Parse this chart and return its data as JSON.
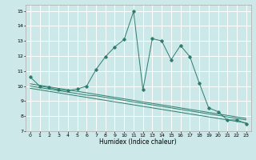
{
  "title": "",
  "xlabel": "Humidex (Indice chaleur)",
  "xlim": [
    -0.5,
    23.5
  ],
  "ylim": [
    7,
    15.4
  ],
  "yticks": [
    7,
    8,
    9,
    10,
    11,
    12,
    13,
    14,
    15
  ],
  "xticks": [
    0,
    1,
    2,
    3,
    4,
    5,
    6,
    7,
    8,
    9,
    10,
    11,
    12,
    13,
    14,
    15,
    16,
    17,
    18,
    19,
    20,
    21,
    22,
    23
  ],
  "bg_color": "#cce8e8",
  "grid_color": "#ffffff",
  "line_color": "#2e7d6e",
  "line1_x": [
    0,
    1,
    2,
    3,
    4,
    5,
    6,
    7,
    8,
    9,
    10,
    11,
    12,
    13,
    14,
    15,
    16,
    17,
    18,
    19,
    20,
    21,
    22,
    23
  ],
  "line1_y": [
    10.6,
    10.0,
    9.9,
    9.75,
    9.7,
    9.8,
    10.0,
    11.1,
    11.95,
    12.6,
    13.1,
    14.95,
    9.75,
    13.15,
    13.0,
    11.75,
    12.7,
    11.95,
    10.2,
    8.55,
    8.3,
    7.75,
    7.75,
    7.5
  ],
  "line2_x": [
    0,
    1,
    2,
    3,
    4,
    5,
    6,
    7,
    8,
    9,
    10,
    11,
    12,
    13,
    14,
    15,
    16,
    17,
    18,
    19,
    20,
    21,
    22,
    23
  ],
  "line2_y": [
    10.0,
    9.9,
    9.8,
    9.7,
    9.6,
    9.5,
    9.4,
    9.35,
    9.25,
    9.15,
    9.05,
    8.95,
    8.85,
    8.75,
    8.65,
    8.55,
    8.45,
    8.35,
    8.25,
    8.15,
    8.05,
    7.95,
    7.85,
    7.75
  ],
  "line3_x": [
    0,
    1,
    2,
    3,
    4,
    5,
    6,
    7,
    8,
    9,
    10,
    11,
    12,
    13,
    14,
    15,
    16,
    17,
    18,
    19,
    20,
    21,
    22,
    23
  ],
  "line3_y": [
    10.15,
    10.05,
    9.95,
    9.85,
    9.75,
    9.65,
    9.55,
    9.45,
    9.35,
    9.25,
    9.15,
    9.05,
    8.95,
    8.85,
    8.75,
    8.65,
    8.55,
    8.45,
    8.35,
    8.25,
    8.15,
    8.05,
    7.95,
    7.85
  ],
  "line4_x": [
    0,
    1,
    2,
    3,
    4,
    5,
    6,
    7,
    8,
    9,
    10,
    11,
    12,
    13,
    14,
    15,
    16,
    17,
    18,
    19,
    20,
    21,
    22,
    23
  ],
  "line4_y": [
    9.85,
    9.75,
    9.65,
    9.55,
    9.45,
    9.35,
    9.25,
    9.15,
    9.05,
    8.95,
    8.85,
    8.75,
    8.65,
    8.55,
    8.45,
    8.35,
    8.25,
    8.15,
    8.05,
    7.95,
    7.85,
    7.75,
    7.65,
    7.55
  ]
}
